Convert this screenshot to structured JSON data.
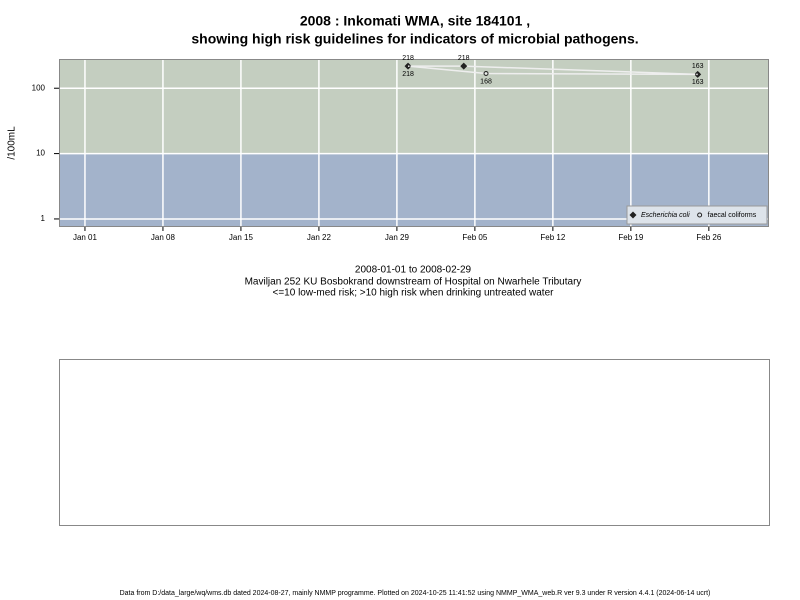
{
  "chart_data": {
    "type": "line",
    "title": "2008 : Inkomati WMA, site 184101 ,",
    "subtitle": "showing high risk guidelines for indicators of microbial pathogens.",
    "ylabel": "/100mL",
    "yscale": "log",
    "ylim": [
      0.78,
      280
    ],
    "yticks": [
      1,
      10,
      100
    ],
    "xlim": [
      -1.33,
      62.4
    ],
    "xticks": [
      {
        "value": 1,
        "label": "Jan 01"
      },
      {
        "value": 8,
        "label": "Jan 08"
      },
      {
        "value": 15,
        "label": "Jan 15"
      },
      {
        "value": 22,
        "label": "Jan 22"
      },
      {
        "value": 29,
        "label": "Jan 29"
      },
      {
        "value": 36,
        "label": "Feb 05"
      },
      {
        "value": 43,
        "label": "Feb 12"
      },
      {
        "value": 50,
        "label": "Feb 19"
      },
      {
        "value": 57,
        "label": "Feb 26"
      }
    ],
    "grid": true,
    "threshold": 10,
    "band_colors": [
      "#a3b3cb",
      "#c4cec0"
    ],
    "line_color": "#eeeeee",
    "series": [
      {
        "name": "Escherichia coli",
        "marker": "diamond",
        "color": "#222222",
        "x": [
          30,
          35,
          56
        ],
        "values": [
          218,
          218,
          163
        ]
      },
      {
        "name": "faecal coliforms",
        "marker": "circle",
        "color": "#222222",
        "x": [
          30,
          37,
          56
        ],
        "values": [
          218,
          168,
          163
        ]
      }
    ],
    "legend": "bottom-right",
    "notes": [
      "2008-01-01 to 2008-02-29",
      "Maviljan 252 KU Bosbokrand downstream of Hospital on Nwarhele Tributary",
      "<=10 low-med risk; >10 high risk when drinking untreated water"
    ]
  },
  "footer": "Data from D:/data_large/wq/wms.db dated 2024-08-27, mainly NMMP programme. Plotted on 2024-10-25 11:41:52 using NMMP_WMA_web.R ver 9.3 under R version 4.4.1 (2024-06-14 ucrt)"
}
